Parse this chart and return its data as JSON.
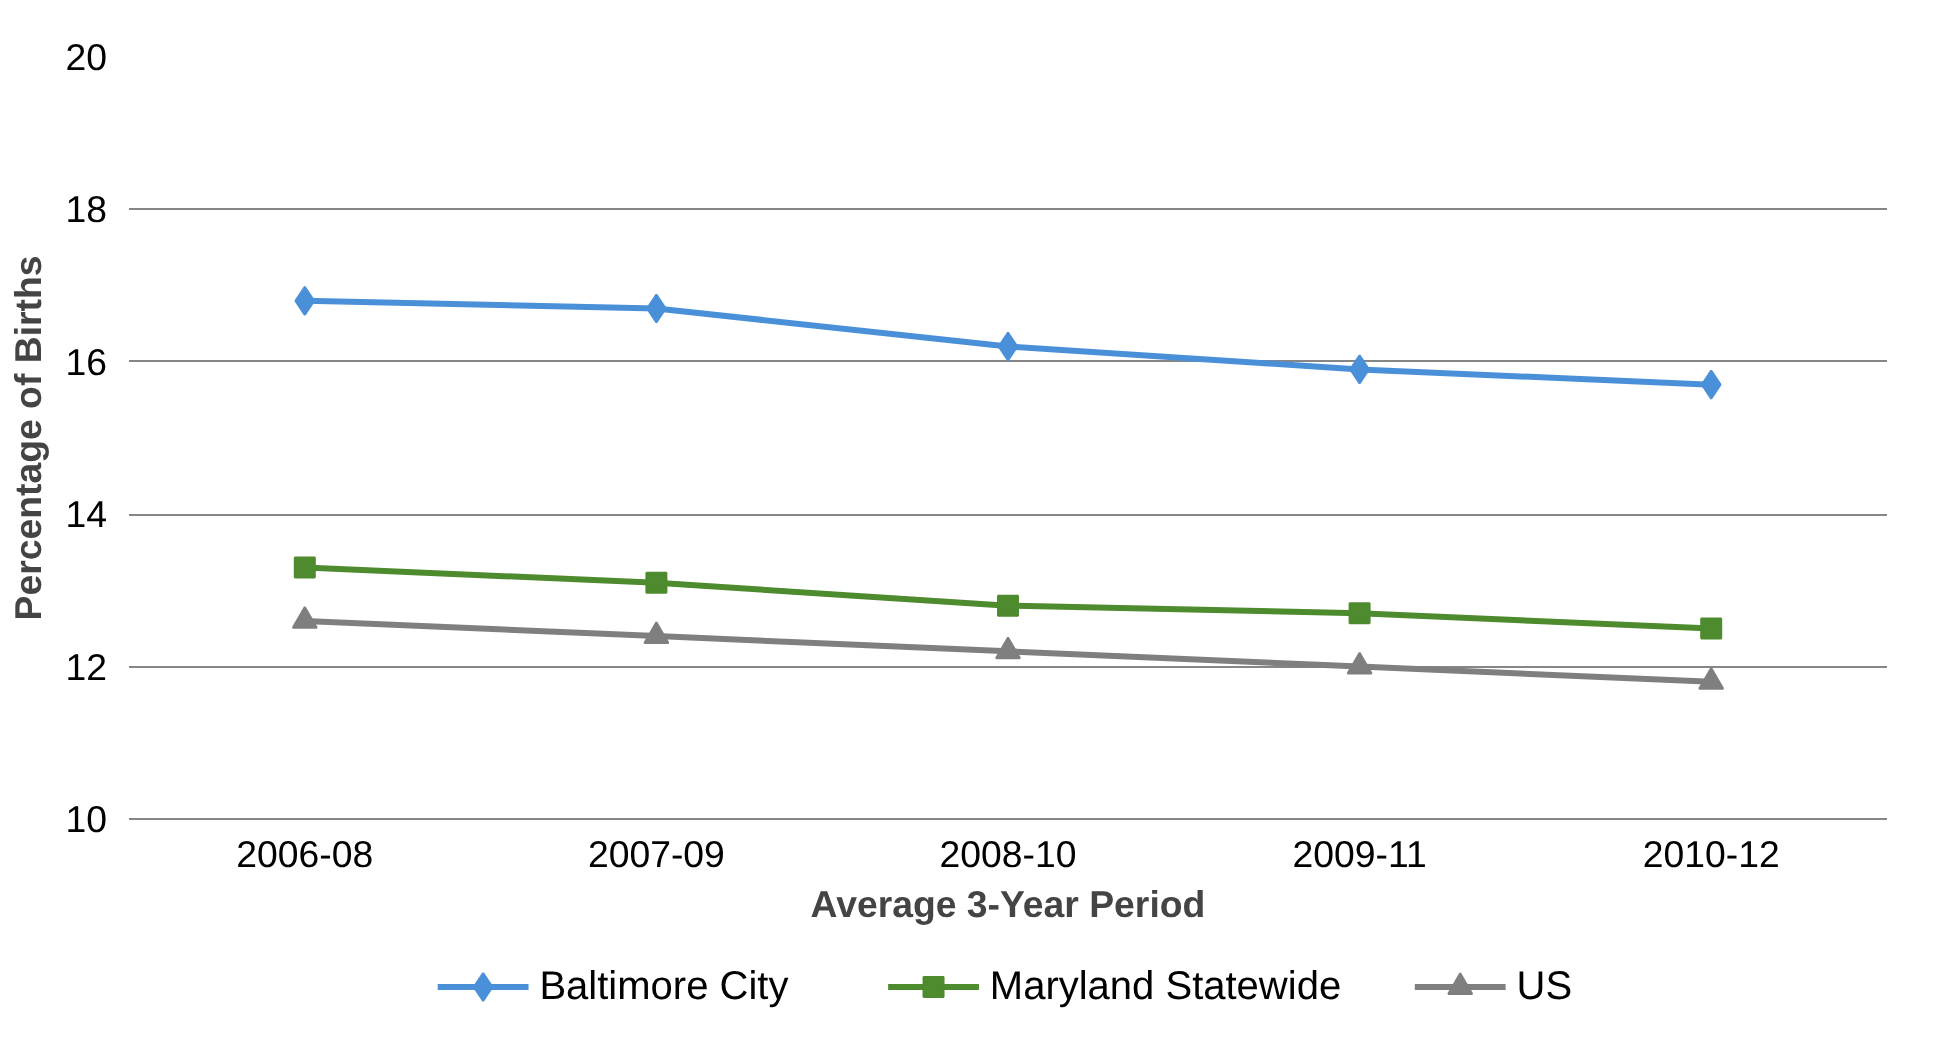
{
  "chart_data": {
    "type": "line",
    "xlabel": "Average 3-Year Period",
    "ylabel": "Percentage of Births",
    "categories": [
      "2006-08",
      "2007-09",
      "2008-10",
      "2009-11",
      "2010-12"
    ],
    "series": [
      {
        "name": "Baltimore City",
        "color": "#4a90d9",
        "marker": "diamond",
        "values": [
          16.8,
          16.7,
          16.2,
          15.9,
          15.7
        ]
      },
      {
        "name": "Maryland Statewide",
        "color": "#4e8a2e",
        "marker": "square",
        "values": [
          13.3,
          13.1,
          12.8,
          12.7,
          12.5
        ]
      },
      {
        "name": "US",
        "color": "#7f7f7f",
        "marker": "triangle",
        "values": [
          12.6,
          12.4,
          12.2,
          12.0,
          11.8
        ]
      }
    ],
    "ylim": [
      10,
      20
    ],
    "yticks": [
      10,
      12,
      14,
      16,
      18,
      20
    ],
    "grid": "y",
    "legend": "bottom",
    "line_style": "solid"
  }
}
